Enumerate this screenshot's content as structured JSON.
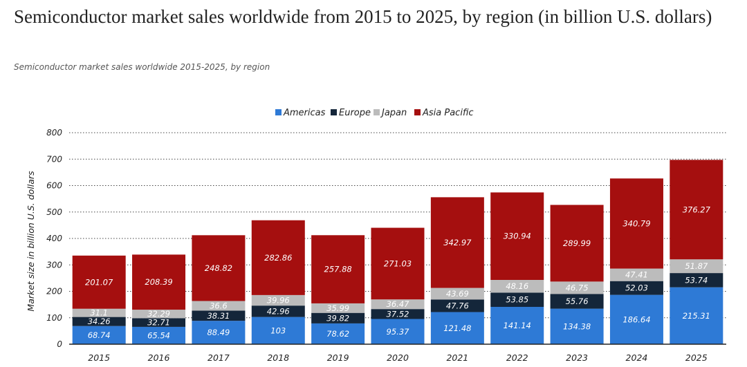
{
  "title": "Semiconductor market sales worldwide from 2015 to 2025, by region (in billion U.S. dollars)",
  "subtitle": "Semiconductor market sales worldwide 2015-2025, by region",
  "chart_data": {
    "type": "bar",
    "stacked": true,
    "categories": [
      "2015",
      "2016",
      "2017",
      "2018",
      "2019",
      "2020",
      "2021",
      "2022",
      "2023",
      "2024",
      "2025"
    ],
    "series": [
      {
        "name": "Americas",
        "color": "#2e7ad6",
        "values": [
          68.74,
          65.54,
          88.49,
          103,
          78.62,
          95.37,
          121.48,
          141.14,
          134.38,
          186.64,
          215.31
        ],
        "labels": [
          "68.74",
          "65.54",
          "88.49",
          "103",
          "78.62",
          "95.37",
          "121.48",
          "141.14",
          "134.38",
          "186.64",
          "215.31"
        ]
      },
      {
        "name": "Europe",
        "color": "#14263a",
        "values": [
          34.26,
          32.71,
          38.31,
          42.96,
          39.82,
          37.52,
          47.76,
          53.85,
          55.76,
          52.03,
          53.74
        ],
        "labels": [
          "34.26",
          "32.71",
          "38.31",
          "42.96",
          "39.82",
          "37.52",
          "47.76",
          "53.85",
          "55.76",
          "52.03",
          "53.74"
        ]
      },
      {
        "name": "Japan",
        "color": "#bcbcbc",
        "values": [
          31.1,
          32.29,
          36.6,
          39.96,
          35.99,
          36.47,
          43.69,
          48.16,
          46.75,
          47.41,
          51.87
        ],
        "labels": [
          "31.1",
          "32.29",
          "36.6",
          "39.96",
          "35.99",
          "36.47",
          "43.69",
          "48.16",
          "46.75",
          "47.41",
          "51.87"
        ]
      },
      {
        "name": "Asia Pacific",
        "color": "#a50f0f",
        "values": [
          201.07,
          208.39,
          248.82,
          282.86,
          257.88,
          271.03,
          342.97,
          330.94,
          289.99,
          340.79,
          376.27
        ],
        "labels": [
          "201.07",
          "208.39",
          "248.82",
          "282.86",
          "257.88",
          "271.03",
          "342.97",
          "330.94",
          "289.99",
          "340.79",
          "376.27"
        ]
      }
    ],
    "ylabel": "Market size in billion U.S. dollars",
    "xlabel": "",
    "ylim": [
      0,
      800
    ],
    "yticks": [
      0,
      100,
      200,
      300,
      400,
      500,
      600,
      700,
      800
    ],
    "ytick_labels": [
      "0",
      "100",
      "200",
      "300",
      "400",
      "500",
      "600",
      "700",
      "800"
    ],
    "grid": true,
    "legend": "top-center"
  }
}
